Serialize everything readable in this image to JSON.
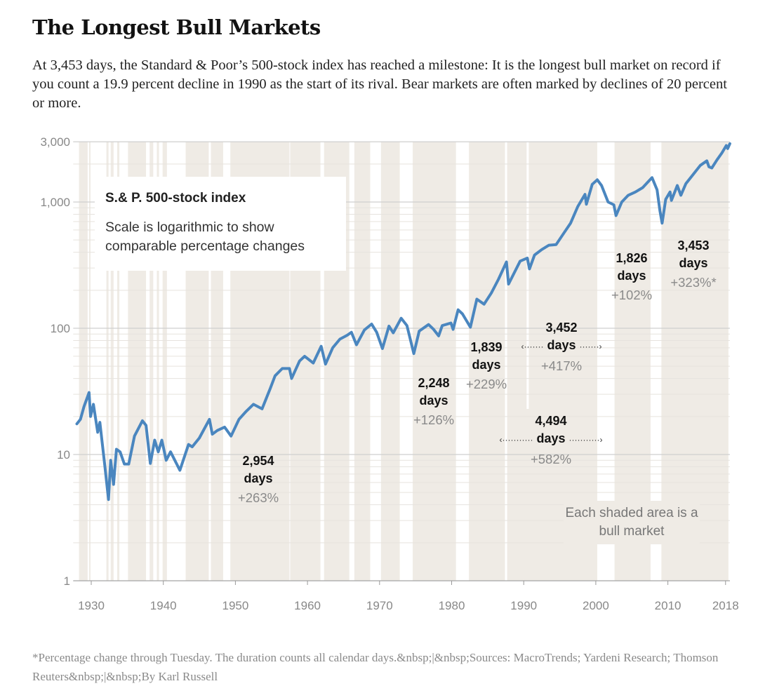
{
  "header": {
    "title": "The Longest Bull Markets",
    "subtitle": "At 3,453 days, the Standard & Poor’s 500-stock index has reached a milestone: It is the longest bull market on record if you count a 19.9 percent decline in 1990 as the start of its rival. Bear markets are often marked by declines of 20 percent or more."
  },
  "legend": {
    "title": "S.& P. 500-stock index",
    "description": "Scale is logarithmic to show comparable percentage changes"
  },
  "note": "Each shaded area is a bull market",
  "footnote": "*Percentage change through Tuesday. The duration counts all calendar days.&nbsp;|&nbsp;Sources: MacroTrends; Yardeni Research; Thomson Reuters&nbsp;|&nbsp;By Karl Russell",
  "annotations": [
    {
      "days": "2,954",
      "unit": "days",
      "change": "+263%"
    },
    {
      "days": "2,248",
      "unit": "days",
      "change": "+126%"
    },
    {
      "days": "1,839",
      "unit": "days",
      "change": "+229%"
    },
    {
      "days": "3,452",
      "unit": "days",
      "change": "+417%"
    },
    {
      "days": "4,494",
      "unit": "days",
      "change": "+582%"
    },
    {
      "days": "1,826",
      "unit": "days",
      "change": "+102%"
    },
    {
      "days": "3,453",
      "unit": "days",
      "change": "+323%*"
    }
  ],
  "colors": {
    "line": "#4a86bf",
    "shade": "#efebe5",
    "grid": "#cfcfcf"
  },
  "chart_data": {
    "type": "line",
    "yscale": "log",
    "ylim": [
      1,
      3000
    ],
    "xlim": [
      1927.5,
      2018.6
    ],
    "yticks": [
      1,
      10,
      100,
      1000,
      3000
    ],
    "ytick_labels": [
      "1",
      "10",
      "100",
      "1,000",
      "3,000"
    ],
    "xticks": [
      1930,
      1940,
      1950,
      1960,
      1970,
      1980,
      1990,
      2000,
      2010,
      2018
    ],
    "xtick_labels": [
      "1930",
      "1940",
      "1950",
      "1960",
      "1970",
      "1980",
      "1990",
      "2000",
      "2010",
      "2018"
    ],
    "bull_markets": [
      [
        1928.3,
        1929.5
      ],
      [
        1929.7,
        1929.9
      ],
      [
        1932.1,
        1932.4
      ],
      [
        1932.7,
        1933.1
      ],
      [
        1933.6,
        1933.9
      ],
      [
        1935.1,
        1937.6
      ],
      [
        1938.1,
        1938.6
      ],
      [
        1939.1,
        1939.4
      ],
      [
        1939.9,
        1940.5
      ],
      [
        1943.1,
        1946.3
      ],
      [
        1946.6,
        1948.3
      ],
      [
        1949.3,
        1957.5
      ],
      [
        1957.6,
        1961.8
      ],
      [
        1962.3,
        1965.8
      ],
      [
        1966.5,
        1968.7
      ],
      [
        1970.2,
        1972.8
      ],
      [
        1974.6,
        1980.6
      ],
      [
        1982.4,
        1987.4
      ],
      [
        1987.7,
        1990.4
      ],
      [
        1990.7,
        2000.2
      ],
      [
        2002.6,
        2007.6
      ],
      [
        2009.1,
        2018.4
      ]
    ],
    "series": [
      {
        "x": [
          1928.0,
          1928.5,
          1929.0,
          1929.7,
          1929.9,
          1930.3,
          1930.9,
          1931.2,
          1931.9,
          1932.4,
          1932.7,
          1933.1,
          1933.5,
          1934.0,
          1934.6,
          1935.2,
          1936.0,
          1937.1,
          1937.6,
          1938.2,
          1938.8,
          1939.3,
          1939.8,
          1940.4,
          1941.0,
          1942.3,
          1943.5,
          1944.0,
          1945.0,
          1946.4,
          1946.8,
          1947.5,
          1948.5,
          1949.4,
          1950.5,
          1951.5,
          1952.5,
          1953.7,
          1954.8,
          1955.5,
          1956.5,
          1957.5,
          1957.8,
          1958.9,
          1959.6,
          1960.8,
          1961.9,
          1962.5,
          1963.5,
          1964.5,
          1965.5,
          1966.1,
          1966.8,
          1967.9,
          1968.9,
          1969.6,
          1970.4,
          1971.3,
          1971.9,
          1973.0,
          1973.8,
          1974.75,
          1975.5,
          1976.8,
          1977.5,
          1978.2,
          1978.7,
          1979.9,
          1980.2,
          1980.9,
          1981.5,
          1982.6,
          1983.5,
          1984.5,
          1985.5,
          1986.5,
          1987.6,
          1987.9,
          1989.5,
          1990.5,
          1990.8,
          1991.5,
          1992.5,
          1993.5,
          1994.5,
          1995.5,
          1996.5,
          1997.5,
          1998.5,
          1998.7,
          1999.5,
          2000.2,
          2000.8,
          2001.7,
          2002.5,
          2002.8,
          2003.6,
          2004.5,
          2005.5,
          2006.5,
          2007.8,
          2008.5,
          2008.9,
          2009.2,
          2009.7,
          2010.3,
          2010.5,
          2011.3,
          2011.8,
          2012.5,
          2013.5,
          2014.5,
          2015.4,
          2015.7,
          2016.1,
          2016.8,
          2017.5,
          2018.1,
          2018.3,
          2018.6
        ],
        "y": [
          17.5,
          19,
          24,
          31,
          20,
          25,
          15,
          18,
          8,
          4.4,
          9,
          5.8,
          11,
          10.5,
          8.4,
          8.4,
          14,
          18.5,
          17,
          8.5,
          13,
          10.5,
          13,
          9,
          10.5,
          7.5,
          12,
          11.5,
          13.5,
          19,
          14.5,
          15.5,
          16.5,
          14,
          19,
          22,
          25,
          23,
          33,
          42,
          48,
          48,
          40,
          55,
          60,
          53,
          72,
          52,
          70,
          82,
          88,
          93,
          74,
          97,
          108,
          93,
          69,
          104,
          92,
          120,
          105,
          63,
          95,
          107,
          98,
          87,
          105,
          110,
          98,
          140,
          130,
          102,
          170,
          155,
          190,
          245,
          335,
          224,
          340,
          360,
          295,
          380,
          420,
          455,
          460,
          560,
          680,
          920,
          1150,
          960,
          1380,
          1500,
          1350,
          1000,
          950,
          780,
          1000,
          1130,
          1200,
          1300,
          1560,
          1250,
          850,
          680,
          1050,
          1200,
          1030,
          1350,
          1130,
          1400,
          1650,
          1950,
          2120,
          1900,
          1860,
          2150,
          2450,
          2800,
          2650,
          2900
        ]
      }
    ]
  }
}
